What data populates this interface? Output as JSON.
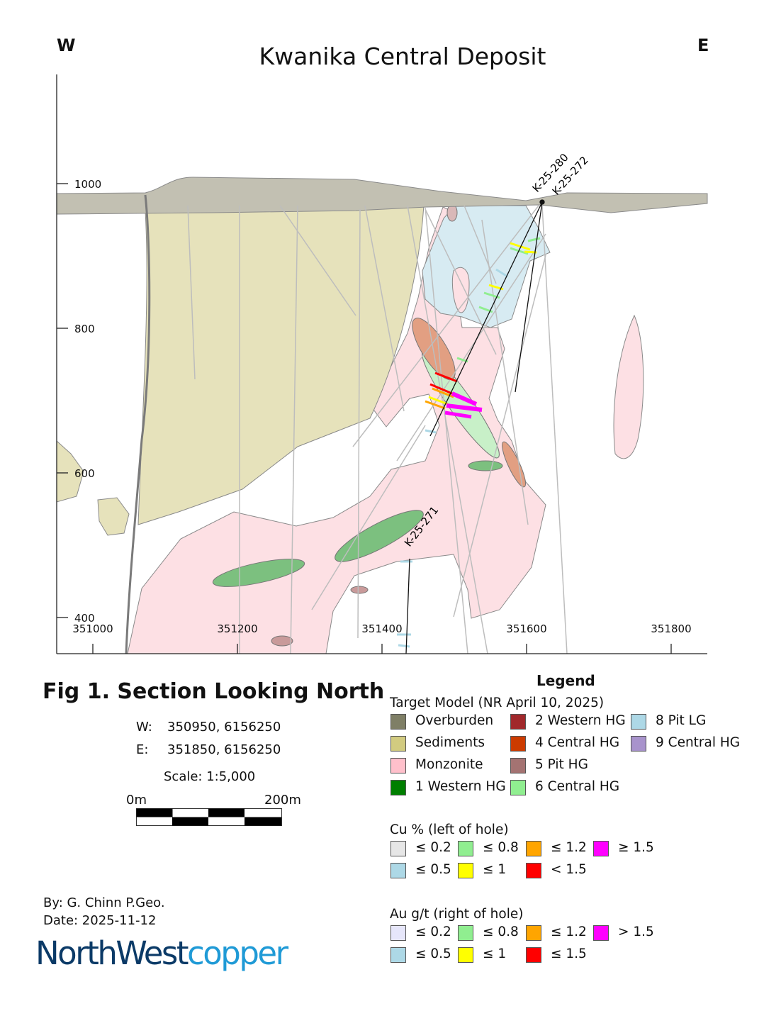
{
  "header": {
    "title": "Kwanika Central Deposit",
    "west": "W",
    "east": "E"
  },
  "map": {
    "elevation_ticks": [
      "1000",
      "800",
      "600",
      "400"
    ],
    "easting_ticks": [
      "351000",
      "351200",
      "351400",
      "351600",
      "351800"
    ],
    "drill_holes": [
      "K-25-280",
      "K-25-272",
      "K-25-271"
    ],
    "colors": {
      "overburden_band": "#c2c0b2",
      "sediments": "#e6e2bb",
      "monzonite": "#fde0e4",
      "pit_lg": "#d7ebf2",
      "western_hg": "#7cc07f",
      "central_hg_6": "#c8f0c8",
      "salmon_zone": "#e29f82",
      "pit_hg": "#c99a9a",
      "drillhole": "#b8b8b8"
    }
  },
  "figure": {
    "title": "Fig 1. Section Looking North",
    "w_label": "W:",
    "w_value": "350950, 6156250",
    "e_label": "E:",
    "e_value": "351850, 6156250",
    "scale": "Scale: 1:5,000",
    "scalebar_start": "0m",
    "scalebar_end": "200m",
    "author": "By: G. Chinn P.Geo.",
    "date": "Date: 2025-11-12"
  },
  "logo": {
    "part1": "NorthWest",
    "part2": "copper"
  },
  "legend": {
    "title": "Legend",
    "target_model": {
      "title": "Target Model (NR April 10, 2025)",
      "items": [
        {
          "label": "Overburden",
          "color": "#7f7f66"
        },
        {
          "label": "Sediments",
          "color": "#d2cb80"
        },
        {
          "label": "Monzonite",
          "color": "#ffc0cb"
        },
        {
          "label": "1 Western HG",
          "color": "#007f00"
        },
        {
          "label": "2 Western HG",
          "color": "#a1282b"
        },
        {
          "label": "4 Central HG",
          "color": "#cc3b00"
        },
        {
          "label": "5 Pit HG",
          "color": "#a47372"
        },
        {
          "label": "6 Central HG",
          "color": "#90ee90"
        },
        {
          "label": "8 Pit LG",
          "color": "#add8e6"
        },
        {
          "label": "9 Central HG",
          "color": "#a893cc"
        }
      ]
    },
    "cu": {
      "title": "Cu % (left of hole)",
      "items": [
        {
          "label": "≤ 0.2",
          "color": "#e6e6e6"
        },
        {
          "label": "≤ 0.5",
          "color": "#add8e6"
        },
        {
          "label": "≤ 0.8",
          "color": "#90ee90"
        },
        {
          "label": "≤ 1",
          "color": "#ffff00"
        },
        {
          "label": "≤ 1.2",
          "color": "#ffa500"
        },
        {
          "label": "< 1.5",
          "color": "#ff0000"
        },
        {
          "label": "≥ 1.5",
          "color": "#ff00ff"
        }
      ]
    },
    "au": {
      "title": "Au g/t (right of hole)",
      "items": [
        {
          "label": "≤ 0.2",
          "color": "#e6e6fa"
        },
        {
          "label": "≤ 0.5",
          "color": "#add8e6"
        },
        {
          "label": "≤ 0.8",
          "color": "#90ee90"
        },
        {
          "label": "≤ 1",
          "color": "#ffff00"
        },
        {
          "label": "≤ 1.2",
          "color": "#ffa500"
        },
        {
          "label": "≤ 1.5",
          "color": "#ff0000"
        },
        {
          "label": "> 1.5",
          "color": "#ff00ff"
        }
      ]
    }
  }
}
